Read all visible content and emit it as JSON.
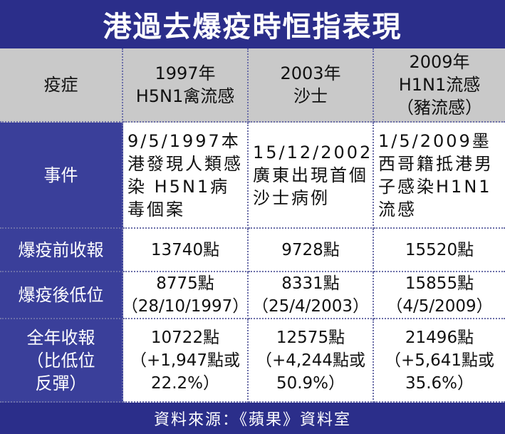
{
  "title": "港過去爆疫時恒指表現",
  "header": [
    "疫症",
    "1997年\nH5N1禽流感",
    "2003年\n沙士",
    "2009年\nH1N1流感\n（豬流感）"
  ],
  "rows": [
    {
      "label": "事件",
      "cells": [
        "9/5/1997本港發現人類感染 H5N1病毒個案",
        "15/12/2002廣東出現首個沙士病例",
        "1/5/2009墨西哥籍抵港男子感染H1N1流感"
      ]
    },
    {
      "label": "爆疫前收報",
      "cells": [
        "13740點",
        "9728點",
        "15520點"
      ]
    },
    {
      "label": "爆疫後低位",
      "cells": [
        "8775點\n（28/10/1997）",
        "8331點\n（25/4/2003）",
        "15855點\n（4/5/2009）"
      ]
    },
    {
      "label": "全年收報\n（比低位\n反彈）",
      "cells": [
        "10722點\n（+1,947點或\n22.2%）",
        "12575點\n（+4,244點或\n50.9%）",
        "21496點\n（+5,641點或\n35.6%）"
      ]
    }
  ],
  "source": "資料來源：《蘋果》資料室",
  "colors": {
    "title_bg": "#2b2e8a",
    "row_header_bg": "#3a3f9a",
    "column_header_bg": "#c9c9c9"
  }
}
